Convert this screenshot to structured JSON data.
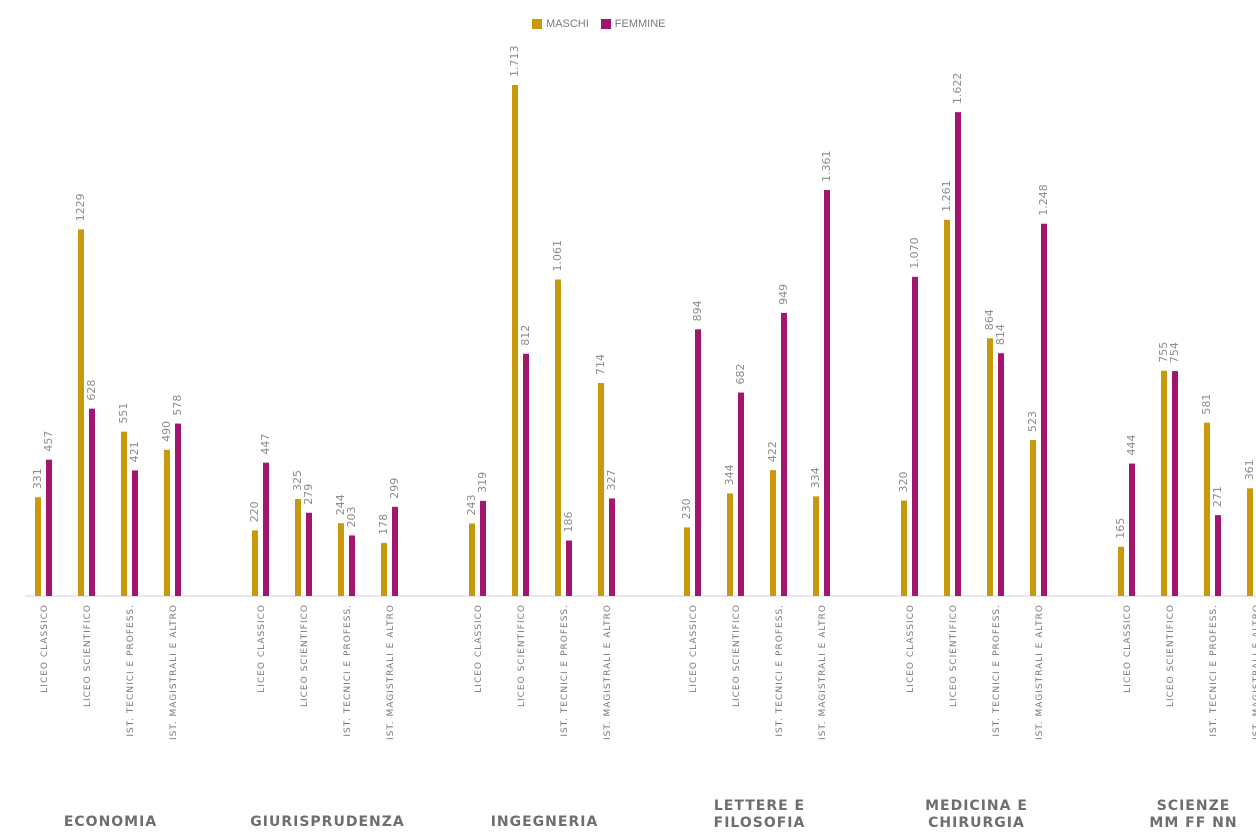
{
  "colors": {
    "maschi": "#C9990C",
    "femmine": "#A3166F",
    "axis": "#cfcfcf"
  },
  "legend": {
    "maschi_label": "MASCHI",
    "femmine_label": "FEMMINE"
  },
  "chart_data": {
    "type": "bar",
    "title": "",
    "xlabel": "",
    "ylabel": "",
    "ylim": [
      0,
      1800
    ],
    "grid": false,
    "legend_position": "top-center",
    "groups": [
      {
        "name": "ECONOMIA",
        "categories": [
          {
            "label": "LICEO CLASSICO",
            "maschi": 331,
            "femmine": 457,
            "maschi_label": "331",
            "femmine_label": "457"
          },
          {
            "label": "LICEO SCIENTIFICO",
            "maschi": 1229,
            "femmine": 628,
            "maschi_label": "1229",
            "femmine_label": "628"
          },
          {
            "label": "IST. TECNICI E PROFESS.",
            "maschi": 551,
            "femmine": 421,
            "maschi_label": "551",
            "femmine_label": "421"
          },
          {
            "label": "IST. MAGISTRALI E ALTRO",
            "maschi": 490,
            "femmine": 578,
            "maschi_label": "490",
            "femmine_label": "578"
          }
        ]
      },
      {
        "name": "GIURISPRUDENZA",
        "categories": [
          {
            "label": "LICEO CLASSICO",
            "maschi": 220,
            "femmine": 447,
            "maschi_label": "220",
            "femmine_label": "447"
          },
          {
            "label": "LICEO SCIENTIFICO",
            "maschi": 325,
            "femmine": 279,
            "maschi_label": "325",
            "femmine_label": "279"
          },
          {
            "label": "IST. TECNICI E PROFESS.",
            "maschi": 244,
            "femmine": 203,
            "maschi_label": "244",
            "femmine_label": "203"
          },
          {
            "label": "IST. MAGISTRALI E ALTRO",
            "maschi": 178,
            "femmine": 299,
            "maschi_label": "178",
            "femmine_label": "299"
          }
        ]
      },
      {
        "name": "INGEGNERIA",
        "categories": [
          {
            "label": "LICEO CLASSICO",
            "maschi": 243,
            "femmine": 319,
            "maschi_label": "243",
            "femmine_label": "319"
          },
          {
            "label": "LICEO SCIENTIFICO",
            "maschi": 1713,
            "femmine": 812,
            "maschi_label": "1.713",
            "femmine_label": "812"
          },
          {
            "label": "IST. TECNICI E PROFESS.",
            "maschi": 1061,
            "femmine": 186,
            "maschi_label": "1.061",
            "femmine_label": "186"
          },
          {
            "label": "IST. MAGISTRALI E ALTRO",
            "maschi": 714,
            "femmine": 327,
            "maschi_label": "714",
            "femmine_label": "327"
          }
        ]
      },
      {
        "name": "LETTERE E FILOSOFIA",
        "categories": [
          {
            "label": "LICEO CLASSICO",
            "maschi": 230,
            "femmine": 894,
            "maschi_label": "230",
            "femmine_label": "894"
          },
          {
            "label": "LICEO SCIENTIFICO",
            "maschi": 344,
            "femmine": 682,
            "maschi_label": "344",
            "femmine_label": "682"
          },
          {
            "label": "IST. TECNICI E PROFESS.",
            "maschi": 422,
            "femmine": 949,
            "maschi_label": "422",
            "femmine_label": "949"
          },
          {
            "label": "IST. MAGISTRALI E ALTRO",
            "maschi": 334,
            "femmine": 1361,
            "maschi_label": "334",
            "femmine_label": "1.361"
          }
        ]
      },
      {
        "name": "MEDICINA E CHIRURGIA",
        "categories": [
          {
            "label": "LICEO CLASSICO",
            "maschi": 320,
            "femmine": 1070,
            "maschi_label": "320",
            "femmine_label": "1.070"
          },
          {
            "label": "LICEO SCIENTIFICO",
            "maschi": 1261,
            "femmine": 1622,
            "maschi_label": "1.261",
            "femmine_label": "1.622"
          },
          {
            "label": "IST. TECNICI E PROFESS.",
            "maschi": 864,
            "femmine": 814,
            "maschi_label": "864",
            "femmine_label": "814"
          },
          {
            "label": "IST. MAGISTRALI E ALTRO",
            "maschi": 523,
            "femmine": 1248,
            "maschi_label": "523",
            "femmine_label": "1.248"
          }
        ]
      },
      {
        "name": "SCIENZE MM FF NN",
        "categories": [
          {
            "label": "LICEO CLASSICO",
            "maschi": 165,
            "femmine": 444,
            "maschi_label": "165",
            "femmine_label": "444"
          },
          {
            "label": "LICEO SCIENTIFICO",
            "maschi": 755,
            "femmine": 754,
            "maschi_label": "755",
            "femmine_label": "754"
          },
          {
            "label": "IST. TECNICI E PROFESS.",
            "maschi": 581,
            "femmine": 271,
            "maschi_label": "581",
            "femmine_label": "271"
          },
          {
            "label": "IST. MAGISTRALI E ALTRO",
            "maschi": 361,
            "femmine": null,
            "maschi_label": "361",
            "femmine_label": ""
          }
        ]
      }
    ]
  }
}
